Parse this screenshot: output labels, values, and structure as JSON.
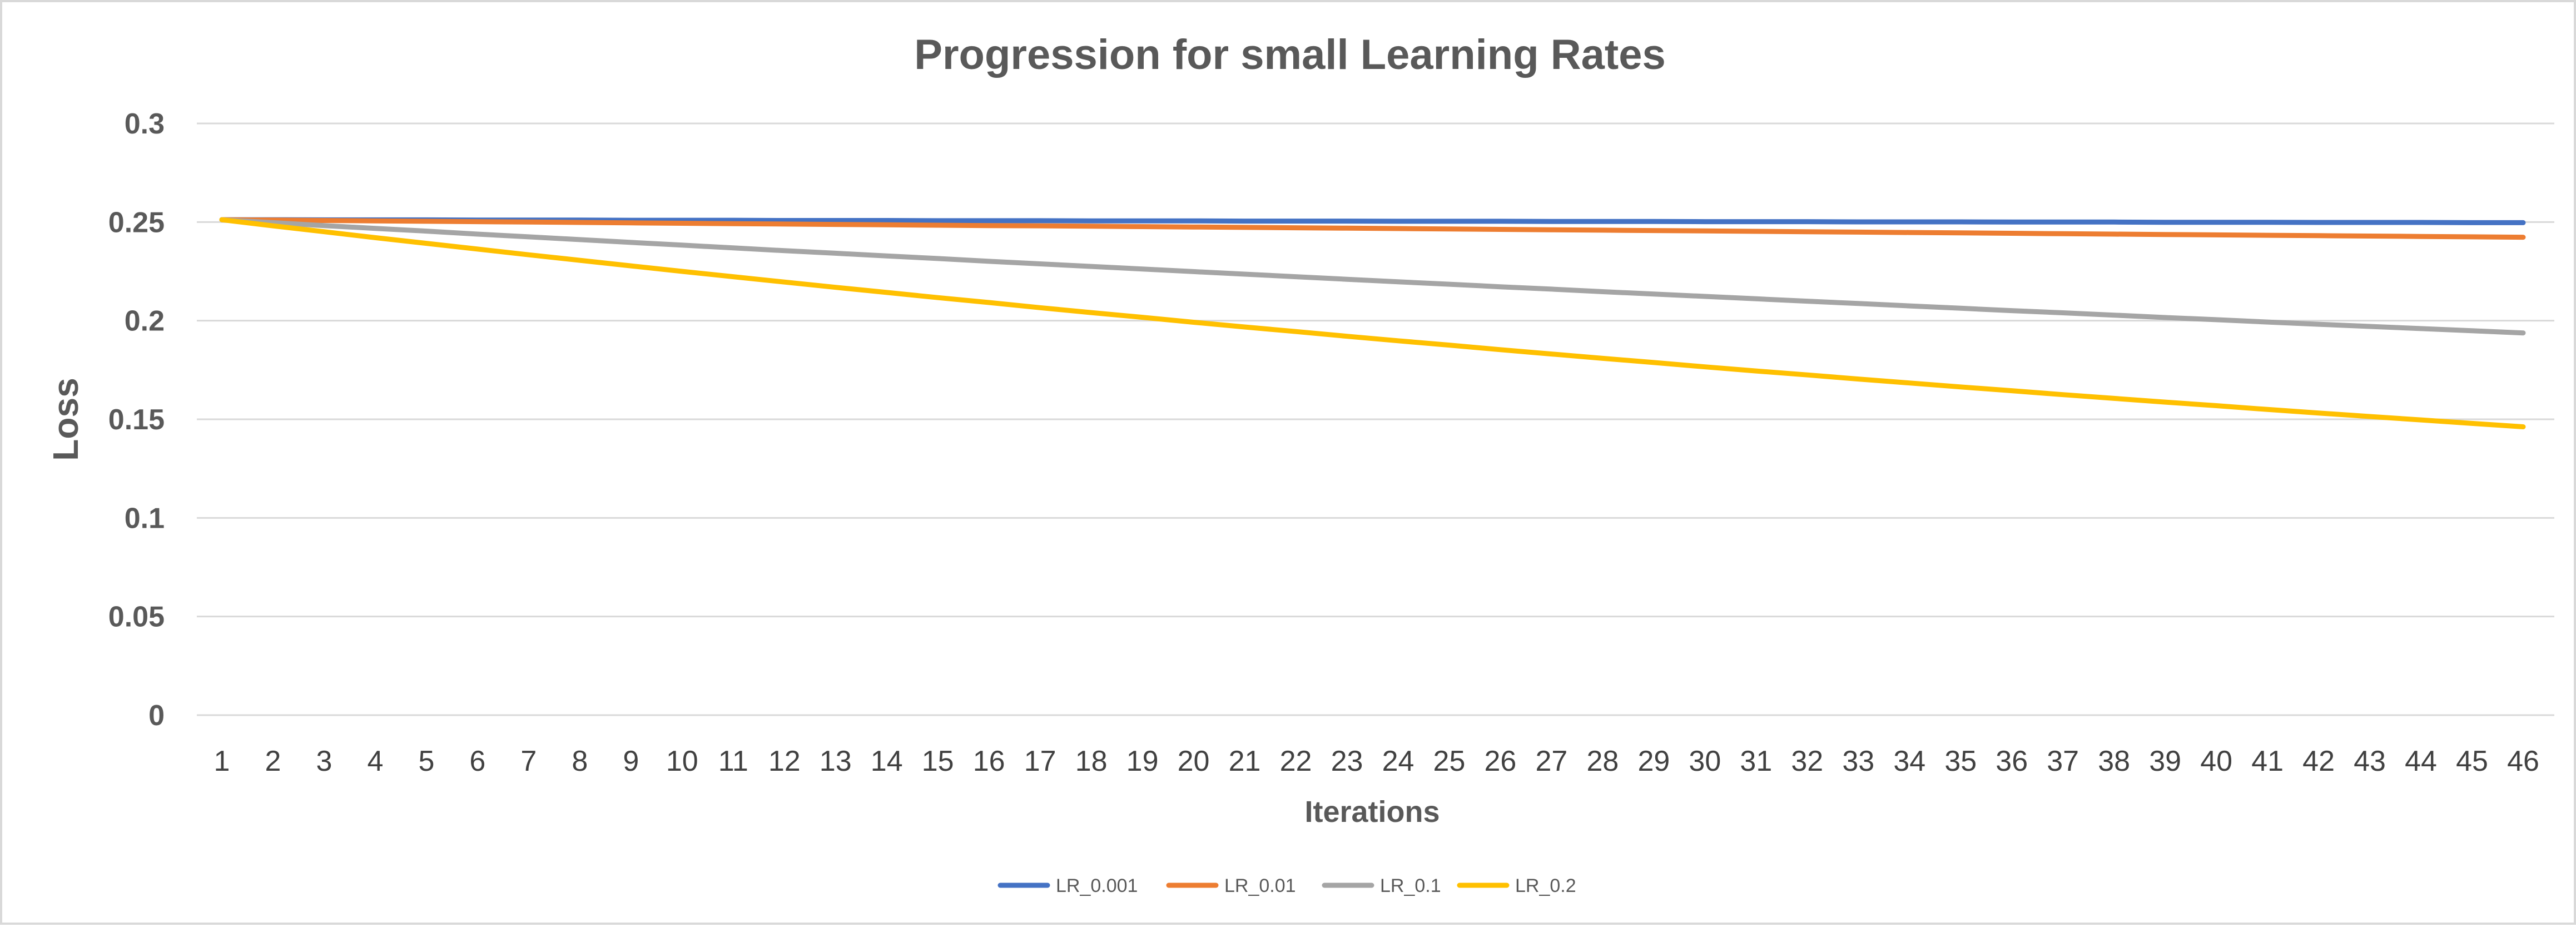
{
  "chart_data": {
    "type": "line",
    "title": "Progression for small Learning Rates",
    "xlabel": "Iterations",
    "ylabel": "Loss",
    "x": [
      1,
      2,
      3,
      4,
      5,
      6,
      7,
      8,
      9,
      10,
      11,
      12,
      13,
      14,
      15,
      16,
      17,
      18,
      19,
      20,
      21,
      22,
      23,
      24,
      25,
      26,
      27,
      28,
      29,
      30,
      31,
      32,
      33,
      34,
      35,
      36,
      37,
      38,
      39,
      40,
      41,
      42,
      43,
      44,
      45,
      46
    ],
    "yticks": [
      "0",
      "0.05",
      "0.1",
      "0.15",
      "0.2",
      "0.25",
      "0.3"
    ],
    "ylim": [
      0,
      0.3
    ],
    "grid": true,
    "legend_position": "bottom",
    "series": [
      {
        "name": "LR_0.001",
        "color": "#4472C4",
        "values": [
          0.2512,
          0.2512,
          0.2511,
          0.2511,
          0.2511,
          0.251,
          0.251,
          0.251,
          0.2509,
          0.2509,
          0.2509,
          0.2508,
          0.2508,
          0.2508,
          0.2507,
          0.2507,
          0.2507,
          0.2506,
          0.2506,
          0.2506,
          0.2505,
          0.2505,
          0.2505,
          0.2504,
          0.2504,
          0.2504,
          0.2503,
          0.2503,
          0.2503,
          0.2502,
          0.2502,
          0.2502,
          0.2501,
          0.2501,
          0.2501,
          0.25,
          0.25,
          0.25,
          0.2499,
          0.2499,
          0.2499,
          0.2498,
          0.2498,
          0.2498,
          0.2497,
          0.2497
        ]
      },
      {
        "name": "LR_0.01",
        "color": "#ED7D31",
        "values": [
          0.2512,
          0.251,
          0.2508,
          0.2506,
          0.2504,
          0.2502,
          0.25,
          0.2498,
          0.2496,
          0.2494,
          0.2492,
          0.249,
          0.2488,
          0.2486,
          0.2484,
          0.2482,
          0.2481,
          0.2479,
          0.2477,
          0.2475,
          0.2473,
          0.2471,
          0.2469,
          0.2467,
          0.2465,
          0.2463,
          0.2461,
          0.2459,
          0.2457,
          0.2455,
          0.2453,
          0.2451,
          0.2449,
          0.2447,
          0.2445,
          0.2443,
          0.2441,
          0.2439,
          0.2437,
          0.2435,
          0.2433,
          0.2431,
          0.2429,
          0.2427,
          0.2425,
          0.2423
        ]
      },
      {
        "name": "LR_0.1",
        "color": "#A5A5A5",
        "values": [
          0.2512,
          0.2497,
          0.2482,
          0.2468,
          0.2454,
          0.2439,
          0.2425,
          0.2411,
          0.2397,
          0.2383,
          0.2369,
          0.2355,
          0.2342,
          0.2328,
          0.2315,
          0.2301,
          0.2288,
          0.2275,
          0.2262,
          0.2249,
          0.2236,
          0.2223,
          0.221,
          0.2197,
          0.2185,
          0.2172,
          0.216,
          0.2147,
          0.2135,
          0.2123,
          0.2111,
          0.2099,
          0.2087,
          0.2075,
          0.2063,
          0.2051,
          0.204,
          0.2028,
          0.2016,
          0.2005,
          0.1993,
          0.1982,
          0.1971,
          0.196,
          0.1949,
          0.1938
        ]
      },
      {
        "name": "LR_0.2",
        "color": "#FFC000",
        "values": [
          0.2512,
          0.2481,
          0.2451,
          0.2421,
          0.2392,
          0.2363,
          0.2334,
          0.2306,
          0.2278,
          0.225,
          0.2223,
          0.2196,
          0.2169,
          0.2143,
          0.2117,
          0.2092,
          0.2066,
          0.2041,
          0.2017,
          0.1992,
          0.1968,
          0.1945,
          0.1921,
          0.1898,
          0.1876,
          0.1853,
          0.1831,
          0.1809,
          0.1788,
          0.1766,
          0.1745,
          0.1725,
          0.1704,
          0.1684,
          0.1664,
          0.1645,
          0.1625,
          0.1606,
          0.1587,
          0.1569,
          0.155,
          0.1532,
          0.1514,
          0.1497,
          0.1479,
          0.1462
        ]
      }
    ]
  }
}
